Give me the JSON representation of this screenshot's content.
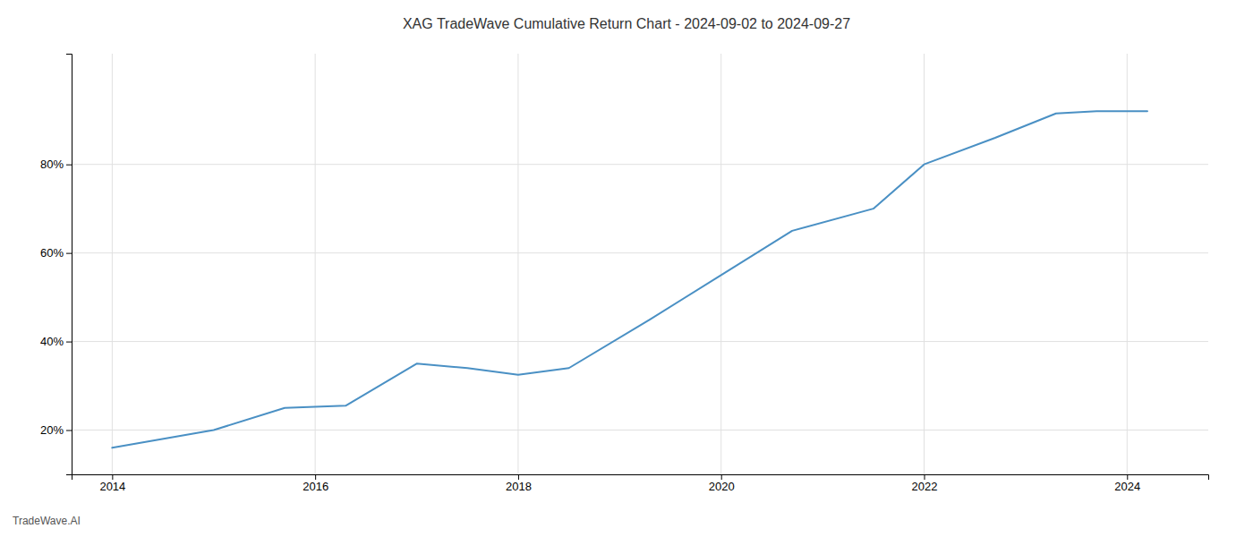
{
  "chart_data": {
    "type": "line",
    "title": "XAG TradeWave Cumulative Return Chart - 2024-09-02 to 2024-09-27",
    "annotations": [
      "TradeWave.AI"
    ],
    "x": [
      2014.0,
      2015.0,
      2015.7,
      2016.3,
      2017.0,
      2017.5,
      2018.0,
      2018.5,
      2019.3,
      2020.0,
      2020.7,
      2021.5,
      2022.0,
      2022.7,
      2023.3,
      2023.7,
      2024.2
    ],
    "values": [
      16.0,
      20.0,
      25.0,
      25.5,
      35.0,
      34.0,
      32.5,
      34.0,
      45.0,
      55.0,
      65.0,
      70.0,
      80.0,
      86.0,
      91.5,
      92.0,
      92.0
    ],
    "color": "#4a90c4",
    "xlim": [
      2013.6,
      2024.8
    ],
    "ylim": [
      10,
      105
    ],
    "xticks": [
      2014,
      2016,
      2018,
      2020,
      2022,
      2024
    ],
    "yticks": [
      {
        "value": 20,
        "label": "20%"
      },
      {
        "value": 40,
        "label": "40%"
      },
      {
        "value": 60,
        "label": "60%"
      },
      {
        "value": 80,
        "label": "80%"
      }
    ],
    "grid": true
  }
}
